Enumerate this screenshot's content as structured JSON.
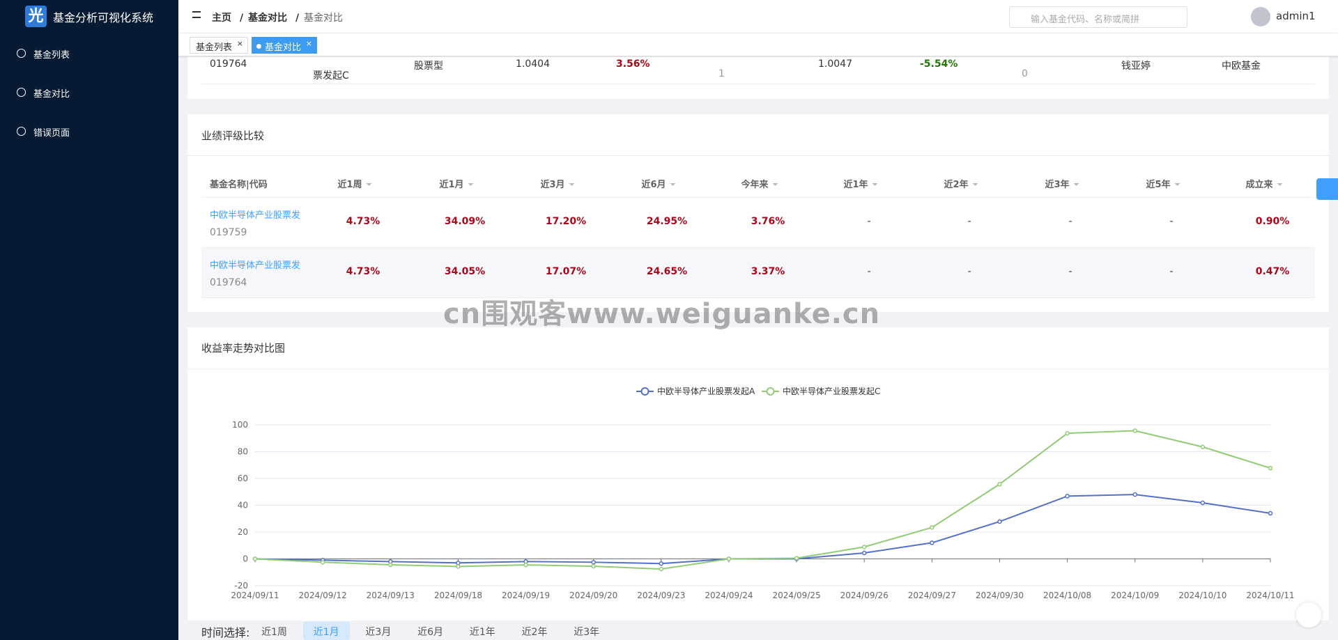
{
  "sidebar": {
    "logo": "光",
    "title": "基金分析可视化系统",
    "menu": [
      "基金列表",
      "基金对比",
      "错误页面"
    ]
  },
  "header": {
    "breadcrumb": [
      "主页",
      "基金对比",
      "基金对比"
    ],
    "search_placeholder": "输入基金代码、名称或简拼",
    "user": "admin1"
  },
  "tabs": {
    "items": [
      "基金列表",
      "基金对比"
    ],
    "active": 1
  },
  "info_table": {
    "row": [
      "019764",
      "票发起C",
      "股票型",
      "1.0404",
      "3.56%",
      "1",
      "1.0047",
      "-5.54%",
      "0",
      "钱亚婷",
      "中欧基金"
    ]
  },
  "rating": {
    "title": "业绩评级比较",
    "headers": [
      "基金名称|代码",
      "近1周",
      "近1月",
      "近3月",
      "近6月",
      "今年来",
      "近1年",
      "近2年",
      "近3年",
      "近5年",
      "成立来"
    ],
    "rows": [
      {
        "name": "中欧半导体产业股票发",
        "code": "019759",
        "values": [
          "4.73%",
          "34.09%",
          "17.20%",
          "24.95%",
          "3.76%",
          "-",
          "-",
          "-",
          "-",
          "0.90%"
        ]
      },
      {
        "name": "中欧半导体产业股票发",
        "code": "019764",
        "values": [
          "4.73%",
          "34.05%",
          "17.07%",
          "24.65%",
          "3.37%",
          "-",
          "-",
          "-",
          "-",
          "0.47%"
        ]
      }
    ]
  },
  "chart_data": {
    "type": "line",
    "title": "收益率走势对比图",
    "x": [
      "2024/09/11",
      "2024/09/12",
      "2024/09/13",
      "2024/09/18",
      "2024/09/19",
      "2024/09/20",
      "2024/09/23",
      "2024/09/24",
      "2024/09/25",
      "2024/09/26",
      "2024/09/27",
      "2024/09/30",
      "2024/10/08",
      "2024/10/09",
      "2024/10/10",
      "2024/10/11"
    ],
    "series": [
      {
        "name": "中欧半导体产业股票发起A",
        "color": "#5470c6",
        "values": [
          0,
          -1,
          -2,
          -3,
          -2,
          -2.5,
          -3.5,
          0,
          0,
          4.4,
          12,
          27.8,
          46.8,
          48,
          41.8,
          34
        ]
      },
      {
        "name": "中欧半导体产业股票发起C",
        "color": "#91cc75",
        "values": [
          0,
          -2.5,
          -4.4,
          -5.7,
          -4.5,
          -5.5,
          -7.6,
          0,
          0.5,
          8.9,
          23.4,
          55.7,
          93.7,
          95.6,
          83.5,
          67.7
        ]
      }
    ],
    "ylim": [
      -20,
      100
    ],
    "yticks": [
      -20,
      0,
      20,
      40,
      60,
      80,
      100
    ],
    "grid": true
  },
  "time_filter": {
    "label": "时间选择:",
    "options": [
      "近1周",
      "近1月",
      "近3月",
      "近6月",
      "近1年",
      "近2年",
      "近3年"
    ],
    "active": 1
  },
  "watermark": "cn围观客www.weiguanke.cn"
}
